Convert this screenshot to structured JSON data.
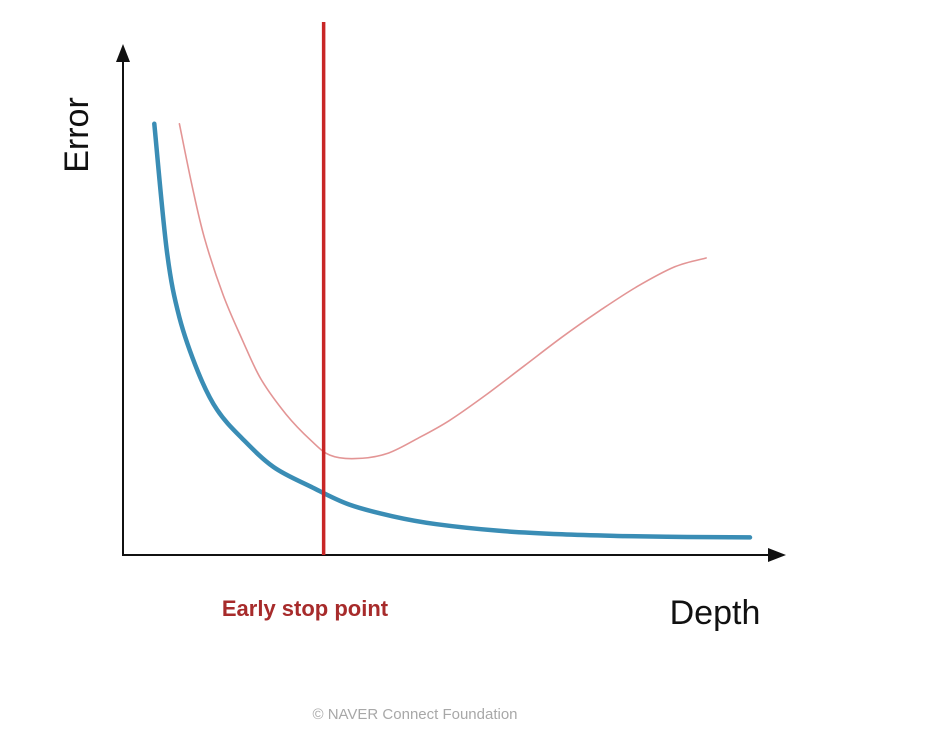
{
  "chart_data": {
    "type": "line",
    "title": "",
    "xlabel": "Depth",
    "ylabel": "Error",
    "grid": false,
    "legend": "none",
    "xlim": [
      0,
      10
    ],
    "ylim": [
      0,
      10
    ],
    "series": [
      {
        "color": "#3a8db5",
        "x": [
          0.5,
          0.7,
          0.9,
          1.2,
          1.5,
          1.9,
          2.4,
          3.0,
          3.6,
          4.3,
          5.0,
          6.0,
          7.0,
          8.0,
          9.0,
          10.0
        ],
        "y": [
          9.8,
          6.9,
          5.4,
          4.15,
          3.3,
          2.65,
          2.0,
          1.55,
          1.15,
          0.88,
          0.7,
          0.55,
          0.47,
          0.43,
          0.41,
          0.4
        ]
      },
      {
        "color": "#e39595",
        "x": [
          0.9,
          1.1,
          1.3,
          1.6,
          1.9,
          2.2,
          2.6,
          3.0,
          3.3,
          3.7,
          4.2,
          4.7,
          5.2,
          5.8,
          6.4,
          7.0,
          7.6,
          8.2,
          8.8,
          9.3
        ],
        "y": [
          9.8,
          8.4,
          7.2,
          5.9,
          4.9,
          4.0,
          3.2,
          2.6,
          2.27,
          2.19,
          2.3,
          2.65,
          3.05,
          3.65,
          4.3,
          4.95,
          5.55,
          6.1,
          6.55,
          6.75
        ]
      }
    ],
    "annotations": [
      {
        "type": "vline",
        "x": 3.2,
        "label": "Early stop point",
        "color": "#c82626",
        "label_color": "#a72b2b"
      }
    ]
  },
  "footer": {
    "copyright": "©  NAVER Connect Foundation"
  }
}
